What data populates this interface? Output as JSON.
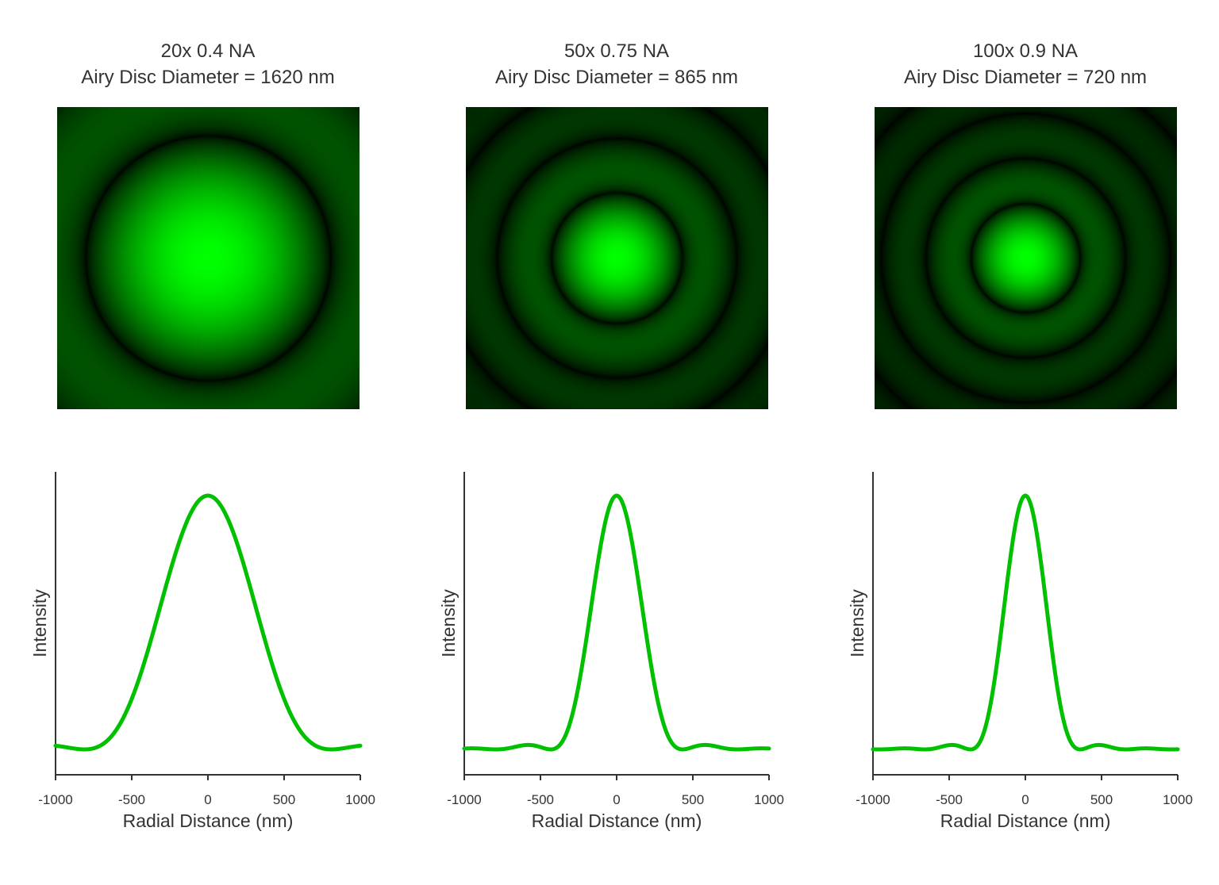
{
  "figure": {
    "panels": [
      {
        "title_line1": "20x 0.4 NA",
        "title_line2": "Airy Disc Diameter = 1620 nm",
        "airy_diameter_nm": 1620,
        "first_dark_ring_radius_nm": 810
      },
      {
        "title_line1": "50x 0.75 NA",
        "title_line2": "Airy Disc Diameter = 865 nm",
        "airy_diameter_nm": 865,
        "first_dark_ring_radius_nm": 432.5
      },
      {
        "title_line1": "100x 0.9 NA",
        "title_line2": "Airy Disc Diameter = 720 nm",
        "airy_diameter_nm": 720,
        "first_dark_ring_radius_nm": 360
      }
    ],
    "colors": {
      "line": "#00c000",
      "airy_peak": "#00ff00",
      "image_background": "#000000",
      "axis": "#333333"
    }
  },
  "chart_data": [
    {
      "type": "line",
      "function": "airy intensity profile",
      "series": [
        {
          "x_range": [
            -1000,
            1000
          ],
          "airy_diameter_nm": 1620
        }
      ],
      "xlabel": "Radial Distance (nm)",
      "ylabel": "Intensity",
      "xlim": [
        -1000,
        1000
      ],
      "xticks": [
        -1000,
        -500,
        0,
        500,
        1000
      ],
      "xtick_labels": [
        "-1000",
        "-500",
        "0",
        "500",
        "1000"
      ],
      "ylim": [
        0,
        1.05
      ],
      "yticks": [],
      "grid": false
    },
    {
      "type": "line",
      "function": "airy intensity profile",
      "series": [
        {
          "x_range": [
            -1000,
            1000
          ],
          "airy_diameter_nm": 865
        }
      ],
      "xlabel": "Radial Distance (nm)",
      "ylabel": "Intensity",
      "xlim": [
        -1000,
        1000
      ],
      "xticks": [
        -1000,
        -500,
        0,
        500,
        1000
      ],
      "xtick_labels": [
        "-1000",
        "-500",
        "0",
        "500",
        "1000"
      ],
      "ylim": [
        0,
        1.05
      ],
      "yticks": [],
      "grid": false
    },
    {
      "type": "line",
      "function": "airy intensity profile",
      "series": [
        {
          "x_range": [
            -1000,
            1000
          ],
          "airy_diameter_nm": 720
        }
      ],
      "xlabel": "Radial Distance (nm)",
      "ylabel": "Intensity",
      "xlim": [
        -1000,
        1000
      ],
      "xticks": [
        -1000,
        -500,
        0,
        500,
        1000
      ],
      "xtick_labels": [
        "-1000",
        "-500",
        "0",
        "500",
        "1000"
      ],
      "ylim": [
        0,
        1.05
      ],
      "yticks": [],
      "grid": false
    }
  ]
}
